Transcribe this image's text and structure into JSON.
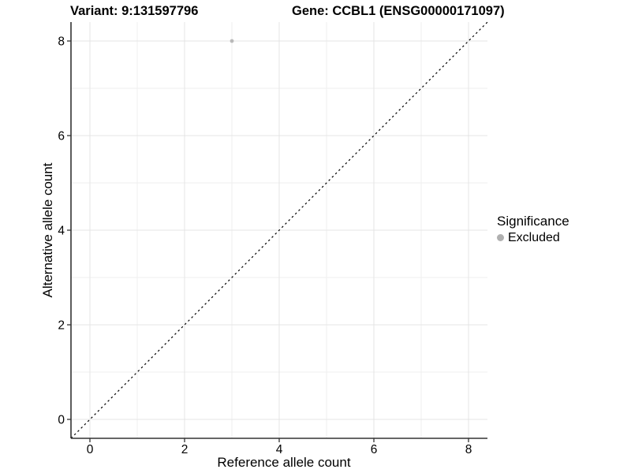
{
  "chart_data": {
    "type": "scatter",
    "title_left": "Variant: 9:131597796",
    "title_right": "Gene: CCBL1 (ENSG00000171097)",
    "xlabel": "Reference allele count",
    "ylabel": "Alternative allele count",
    "xlim": [
      -0.4,
      8.4
    ],
    "ylim": [
      -0.4,
      8.4
    ],
    "xticks": [
      0,
      2,
      4,
      6,
      8
    ],
    "yticks": [
      0,
      2,
      4,
      6,
      8
    ],
    "xticks_minor": [
      1,
      3,
      5,
      7
    ],
    "yticks_minor": [
      1,
      3,
      5,
      7
    ],
    "grid": "major+minor",
    "reference_line": {
      "type": "identity",
      "from": [
        -0.4,
        -0.4
      ],
      "to": [
        8.4,
        8.4
      ],
      "style": "dashed",
      "color": "#000000"
    },
    "series": [
      {
        "name": "Excluded",
        "marker": "circle",
        "color": "#b9b9b9",
        "points": [
          {
            "x": 3,
            "y": 8
          }
        ]
      }
    ],
    "legend": {
      "title": "Significance",
      "position": "right",
      "entries": [
        {
          "label": "Excluded",
          "color": "#b0b0b0"
        }
      ]
    },
    "colors": {
      "background": "#ffffff",
      "grid_major": "#e4e4e4",
      "grid_minor": "#efefef",
      "axis_line": "#333333",
      "tick_mark": "#333333",
      "tick_label": "#000000",
      "axis_title": "#000000"
    }
  }
}
